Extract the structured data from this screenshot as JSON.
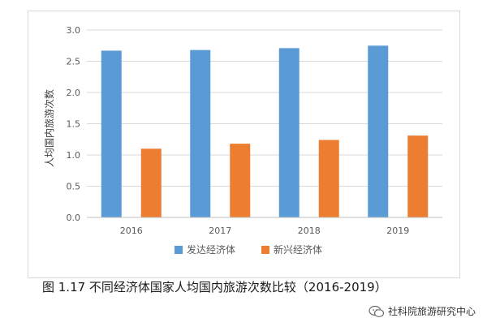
{
  "chart_data": {
    "type": "bar",
    "categories": [
      "2016",
      "2017",
      "2018",
      "2019"
    ],
    "series": [
      {
        "name": "发达经济体",
        "values": [
          2.67,
          2.68,
          2.71,
          2.75
        ],
        "color": "#5b9bd5"
      },
      {
        "name": "新兴经济体",
        "values": [
          1.1,
          1.18,
          1.24,
          1.31
        ],
        "color": "#ed7d31"
      }
    ],
    "ylabel": "人均国内旅游次数",
    "xlabel": "",
    "ylim": [
      0,
      3.0
    ],
    "yticks": [
      "0.0",
      "0.5",
      "1.0",
      "1.5",
      "2.0",
      "2.5",
      "3.0"
    ],
    "grid": true,
    "legend_position": "bottom"
  },
  "caption": "图 1.17 不同经济体国家人均国内旅游次数比较（2016-2019）",
  "watermark": {
    "text": "社科院旅游研究中心",
    "icon": "wechat-icon"
  }
}
